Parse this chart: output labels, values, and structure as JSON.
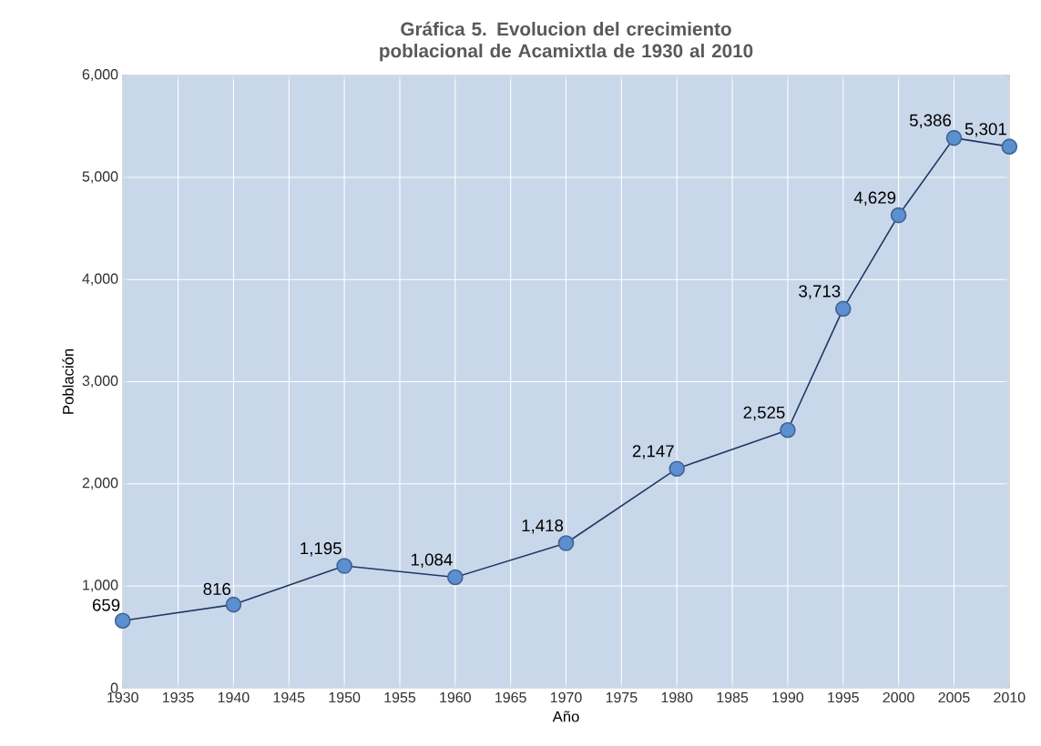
{
  "chart_data": {
    "type": "line",
    "title": "Gráfica 5. Evolucion del crecimiento poblacional de Acamixtla de 1930 al 2010",
    "xlabel": "Año",
    "ylabel": "Población",
    "x": [
      1930,
      1940,
      1950,
      1960,
      1970,
      1980,
      1990,
      1995,
      2000,
      2005,
      2010
    ],
    "series": [
      {
        "color": "#1f3864",
        "values": [
          659,
          816,
          1195,
          1084,
          1418,
          2147,
          2525,
          3713,
          4629,
          5386,
          5301
        ],
        "value_labels": [
          "659",
          "816",
          "1,195",
          "1,084",
          "1,418",
          "2,147",
          "2,525",
          "3,713",
          "4,629",
          "5,386",
          "5,301"
        ]
      }
    ],
    "xlim": [
      1930,
      2010
    ],
    "xticks": [
      1930,
      1935,
      1940,
      1945,
      1950,
      1955,
      1960,
      1965,
      1970,
      1975,
      1980,
      1985,
      1990,
      1995,
      2000,
      2005,
      2010
    ],
    "ylim": [
      0,
      6000
    ],
    "yticks": [
      0,
      {
        "value": 1000,
        "label": "1,000"
      },
      {
        "value": 2000,
        "label": "2,000"
      },
      {
        "value": 3000,
        "label": "3,000"
      },
      {
        "value": 4000,
        "label": "4,000"
      },
      {
        "value": 5000,
        "label": "5,000"
      },
      {
        "value": 6000,
        "label": "6,000"
      }
    ],
    "grid": true,
    "marker": "circle",
    "line_style": "solid"
  }
}
